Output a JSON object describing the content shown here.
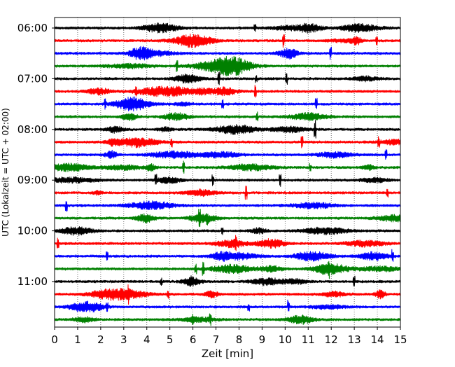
{
  "chart_data": {
    "type": "line",
    "title": "",
    "xlabel": "Zeit  [min]",
    "ylabel": "UTC (Lokalzeit = UTC + 02:00)",
    "xlim": [
      0,
      15
    ],
    "x_ticks": [
      "0",
      "1",
      "2",
      "3",
      "4",
      "5",
      "6",
      "7",
      "8",
      "9",
      "10",
      "11",
      "12",
      "13",
      "14",
      "15"
    ],
    "y_ticks": [
      {
        "label": "06:00",
        "trace": 0
      },
      {
        "label": "07:00",
        "trace": 4
      },
      {
        "label": "08:00",
        "trace": 8
      },
      {
        "label": "09:00",
        "trace": 12
      },
      {
        "label": "10:00",
        "trace": 16
      },
      {
        "label": "11:00",
        "trace": 20
      }
    ],
    "trace_minutes": 15,
    "trace_count": 24,
    "first_trace_start": "06:00",
    "color_cycle": [
      "#000000",
      "#ff0000",
      "#0000ff",
      "#008000"
    ],
    "vertical_grid": "dotted",
    "horizontal_grid": false,
    "legend": "none"
  }
}
